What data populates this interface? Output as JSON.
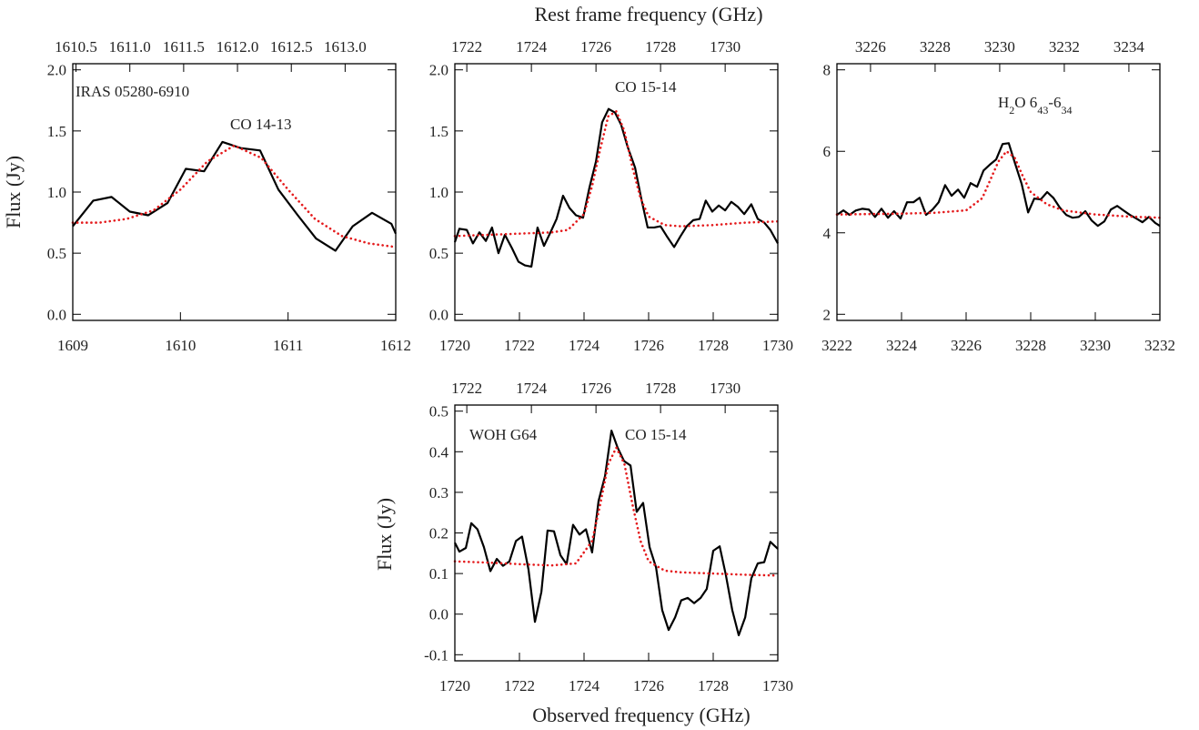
{
  "top_axis_label": "Rest frame frequency (GHz)",
  "bottom_axis_label": "Observed frequency (GHz)",
  "chart_data": [
    {
      "type": "line",
      "ylabel": "Flux (Jy)",
      "xlim": [
        1609,
        1612
      ],
      "xticks": [
        1609,
        1610,
        1611,
        1612
      ],
      "x2lim": [
        1610.47,
        1613.47
      ],
      "x2ticks": [
        1610.5,
        {
          "value": 1611,
          "label": "1611.0"
        },
        1611.5,
        {
          "value": 1612,
          "label": "1612.0"
        },
        1612.5,
        {
          "value": 1613,
          "label": "1613.0"
        }
      ],
      "ylim": [
        -0.05,
        2.05
      ],
      "yticks": [
        {
          "value": 0,
          "label": "0.0"
        },
        0.5,
        {
          "value": 1,
          "label": "1.0"
        },
        1.5,
        {
          "value": 2,
          "label": "2.0"
        }
      ],
      "annotations": [
        {
          "parts": [
            {
              "text": "IRAS 05280-6910"
            }
          ]
        },
        {
          "parts": [
            {
              "text": "CO 14-13"
            }
          ]
        }
      ],
      "series": [
        {
          "color": "#000000",
          "style": "solid",
          "x": [
            1609.0,
            1609.19,
            1609.36,
            1609.53,
            1609.7,
            1609.88,
            1610.05,
            1610.22,
            1610.39,
            1610.56,
            1610.74,
            1610.91,
            1611.09,
            1611.26,
            1611.44,
            1611.6,
            1611.78,
            1611.96,
            1612.0
          ],
          "values": [
            0.72,
            0.93,
            0.96,
            0.84,
            0.81,
            0.91,
            1.19,
            1.17,
            1.41,
            1.36,
            1.34,
            1.02,
            0.81,
            0.62,
            0.52,
            0.72,
            0.83,
            0.74,
            0.66
          ]
        },
        {
          "color": "#e41a1c",
          "style": "dotted",
          "x": [
            1609.0,
            1609.25,
            1609.5,
            1609.75,
            1610.0,
            1610.25,
            1610.5,
            1610.75,
            1611.0,
            1611.25,
            1611.5,
            1611.75,
            1612.0
          ],
          "values": [
            0.75,
            0.75,
            0.78,
            0.85,
            1.02,
            1.25,
            1.38,
            1.28,
            1.02,
            0.78,
            0.64,
            0.58,
            0.55
          ]
        }
      ]
    },
    {
      "type": "line",
      "xlim": [
        1720,
        1730
      ],
      "xticks": [
        1720,
        1722,
        1724,
        1726,
        1728,
        1730
      ],
      "x2lim": [
        1721.63,
        1731.63
      ],
      "x2ticks": [
        1722,
        1724,
        1726,
        1728,
        1730
      ],
      "ylim": [
        -0.05,
        2.05
      ],
      "yticks": [
        {
          "value": 0,
          "label": "0.0"
        },
        0.5,
        {
          "value": 1,
          "label": "1.0"
        },
        1.5,
        {
          "value": 2,
          "label": "2.0"
        }
      ],
      "annotations": [
        {
          "parts": [
            {
              "text": "CO 15-14"
            }
          ]
        }
      ],
      "series": [
        {
          "color": "#000000",
          "style": "solid",
          "x": [
            1720.0,
            1720.14,
            1720.37,
            1720.56,
            1720.76,
            1720.96,
            1721.15,
            1721.35,
            1721.55,
            1721.77,
            1721.97,
            1722.17,
            1722.37,
            1722.56,
            1722.76,
            1722.96,
            1723.15,
            1723.35,
            1723.55,
            1723.75,
            1723.97,
            1724.17,
            1724.37,
            1724.56,
            1724.76,
            1724.96,
            1725.15,
            1725.35,
            1725.58,
            1725.77,
            1725.97,
            1726.17,
            1726.37,
            1726.56,
            1726.79,
            1726.99,
            1727.18,
            1727.38,
            1727.58,
            1727.77,
            1727.97,
            1728.17,
            1728.37,
            1728.56,
            1728.76,
            1728.96,
            1729.18,
            1729.38,
            1729.58,
            1729.77,
            1730.0
          ],
          "values": [
            0.59,
            0.7,
            0.69,
            0.58,
            0.67,
            0.6,
            0.71,
            0.5,
            0.65,
            0.54,
            0.43,
            0.4,
            0.39,
            0.71,
            0.56,
            0.67,
            0.78,
            0.97,
            0.87,
            0.81,
            0.79,
            1.04,
            1.25,
            1.57,
            1.68,
            1.65,
            1.55,
            1.37,
            1.2,
            0.95,
            0.71,
            0.71,
            0.72,
            0.64,
            0.55,
            0.64,
            0.72,
            0.77,
            0.78,
            0.93,
            0.84,
            0.89,
            0.85,
            0.92,
            0.88,
            0.82,
            0.9,
            0.78,
            0.75,
            0.69,
            0.58
          ]
        },
        {
          "color": "#e41a1c",
          "style": "dotted",
          "x": [
            1720,
            1721,
            1722,
            1723,
            1723.5,
            1724,
            1724.25,
            1724.5,
            1724.75,
            1725,
            1725.25,
            1725.5,
            1725.75,
            1726,
            1726.5,
            1727,
            1728,
            1729,
            1730
          ],
          "values": [
            0.64,
            0.65,
            0.66,
            0.67,
            0.69,
            0.82,
            1.05,
            1.35,
            1.62,
            1.66,
            1.5,
            1.2,
            0.95,
            0.8,
            0.73,
            0.72,
            0.73,
            0.75,
            0.76
          ]
        }
      ]
    },
    {
      "type": "line",
      "xlim": [
        3222,
        3232
      ],
      "xticks": [
        3222,
        3224,
        3226,
        3228,
        3230,
        3232
      ],
      "x2lim": [
        3224.96,
        3234.96
      ],
      "x2ticks": [
        3226,
        3228,
        3230,
        3232,
        3234
      ],
      "ylim": [
        1.85,
        8.15
      ],
      "yticks": [
        2,
        4,
        6,
        8
      ],
      "annotations": [
        {
          "parts": [
            {
              "text": "H"
            },
            {
              "text": "2",
              "sub": true
            },
            {
              "text": "O 6"
            },
            {
              "text": "43",
              "sub": true
            },
            {
              "text": "-6"
            },
            {
              "text": "34",
              "sub": true
            }
          ]
        }
      ],
      "series": [
        {
          "color": "#000000",
          "style": "solid",
          "x": [
            3222.0,
            3222.2,
            3222.39,
            3222.59,
            3222.79,
            3222.99,
            3223.18,
            3223.38,
            3223.58,
            3223.77,
            3223.97,
            3224.17,
            3224.37,
            3224.56,
            3224.76,
            3224.96,
            3225.15,
            3225.35,
            3225.55,
            3225.75,
            3225.94,
            3226.14,
            3226.34,
            3226.54,
            3226.73,
            3226.93,
            3227.13,
            3227.32,
            3227.52,
            3227.72,
            3227.92,
            3228.11,
            3228.31,
            3228.51,
            3228.7,
            3228.9,
            3229.1,
            3229.3,
            3229.49,
            3229.69,
            3229.89,
            3230.08,
            3230.28,
            3230.48,
            3230.68,
            3230.87,
            3231.07,
            3231.27,
            3231.46,
            3231.66,
            3231.86,
            3232.0
          ],
          "values": [
            4.44,
            4.55,
            4.44,
            4.55,
            4.59,
            4.57,
            4.39,
            4.59,
            4.37,
            4.53,
            4.35,
            4.75,
            4.75,
            4.86,
            4.44,
            4.57,
            4.75,
            5.17,
            4.91,
            5.06,
            4.86,
            5.22,
            5.13,
            5.53,
            5.67,
            5.8,
            6.18,
            6.2,
            5.69,
            5.2,
            4.5,
            4.84,
            4.82,
            5.0,
            4.86,
            4.62,
            4.44,
            4.37,
            4.39,
            4.53,
            4.3,
            4.17,
            4.28,
            4.57,
            4.66,
            4.55,
            4.44,
            4.35,
            4.26,
            4.39,
            4.24,
            4.17
          ]
        },
        {
          "color": "#e41a1c",
          "style": "dotted",
          "x": [
            3222,
            3223,
            3224,
            3225,
            3226,
            3226.5,
            3226.75,
            3227,
            3227.25,
            3227.5,
            3227.75,
            3228,
            3228.5,
            3229,
            3230,
            3231,
            3232
          ],
          "values": [
            4.45,
            4.46,
            4.47,
            4.49,
            4.55,
            4.85,
            5.3,
            5.75,
            6.0,
            5.85,
            5.4,
            5.0,
            4.7,
            4.55,
            4.45,
            4.4,
            4.37
          ]
        }
      ]
    },
    {
      "type": "line",
      "ylabel": "Flux (Jy)",
      "xlim": [
        1720,
        1730
      ],
      "xticks": [
        1720,
        1722,
        1724,
        1726,
        1728,
        1730
      ],
      "x2lim": [
        1721.63,
        1731.63
      ],
      "x2ticks": [
        1722,
        1724,
        1726,
        1728,
        1730
      ],
      "ylim": [
        -0.115,
        0.515
      ],
      "yticks": [
        -0.1,
        {
          "value": 0,
          "label": "0.0"
        },
        0.1,
        0.2,
        0.3,
        0.4,
        0.5
      ],
      "annotations": [
        {
          "parts": [
            {
              "text": "WOH G64"
            }
          ]
        },
        {
          "parts": [
            {
              "text": "CO 15-14"
            }
          ]
        }
      ],
      "series": [
        {
          "color": "#000000",
          "style": "solid",
          "x": [
            1720.0,
            1720.14,
            1720.34,
            1720.51,
            1720.7,
            1720.9,
            1721.1,
            1721.3,
            1721.49,
            1721.69,
            1721.89,
            1722.08,
            1722.28,
            1722.48,
            1722.68,
            1722.87,
            1723.07,
            1723.27,
            1723.46,
            1723.66,
            1723.86,
            1724.06,
            1724.25,
            1724.45,
            1724.65,
            1724.85,
            1725.04,
            1725.24,
            1725.44,
            1725.63,
            1725.83,
            1726.03,
            1726.23,
            1726.42,
            1726.62,
            1726.82,
            1727.01,
            1727.21,
            1727.41,
            1727.61,
            1727.8,
            1728.0,
            1728.2,
            1728.39,
            1728.59,
            1728.79,
            1728.99,
            1729.18,
            1729.38,
            1729.58,
            1729.77,
            1730.0
          ],
          "values": [
            0.176,
            0.154,
            0.163,
            0.224,
            0.209,
            0.165,
            0.106,
            0.136,
            0.119,
            0.13,
            0.18,
            0.191,
            0.11,
            -0.019,
            0.055,
            0.206,
            0.204,
            0.145,
            0.123,
            0.22,
            0.196,
            0.209,
            0.152,
            0.279,
            0.34,
            0.452,
            0.41,
            0.377,
            0.366,
            0.252,
            0.274,
            0.165,
            0.115,
            0.01,
            -0.039,
            -0.008,
            0.034,
            0.04,
            0.027,
            0.04,
            0.062,
            0.156,
            0.167,
            0.097,
            0.01,
            -0.052,
            -0.008,
            0.088,
            0.125,
            0.128,
            0.178,
            0.161
          ]
        },
        {
          "color": "#e41a1c",
          "style": "dotted",
          "x": [
            1720,
            1721,
            1722,
            1723,
            1723.75,
            1724.25,
            1724.5,
            1724.75,
            1725,
            1725.25,
            1725.5,
            1725.75,
            1726,
            1726.5,
            1727,
            1728,
            1729,
            1730
          ],
          "values": [
            0.13,
            0.127,
            0.123,
            0.12,
            0.125,
            0.18,
            0.27,
            0.37,
            0.41,
            0.37,
            0.27,
            0.18,
            0.13,
            0.107,
            0.103,
            0.1,
            0.097,
            0.095
          ]
        }
      ]
    }
  ]
}
